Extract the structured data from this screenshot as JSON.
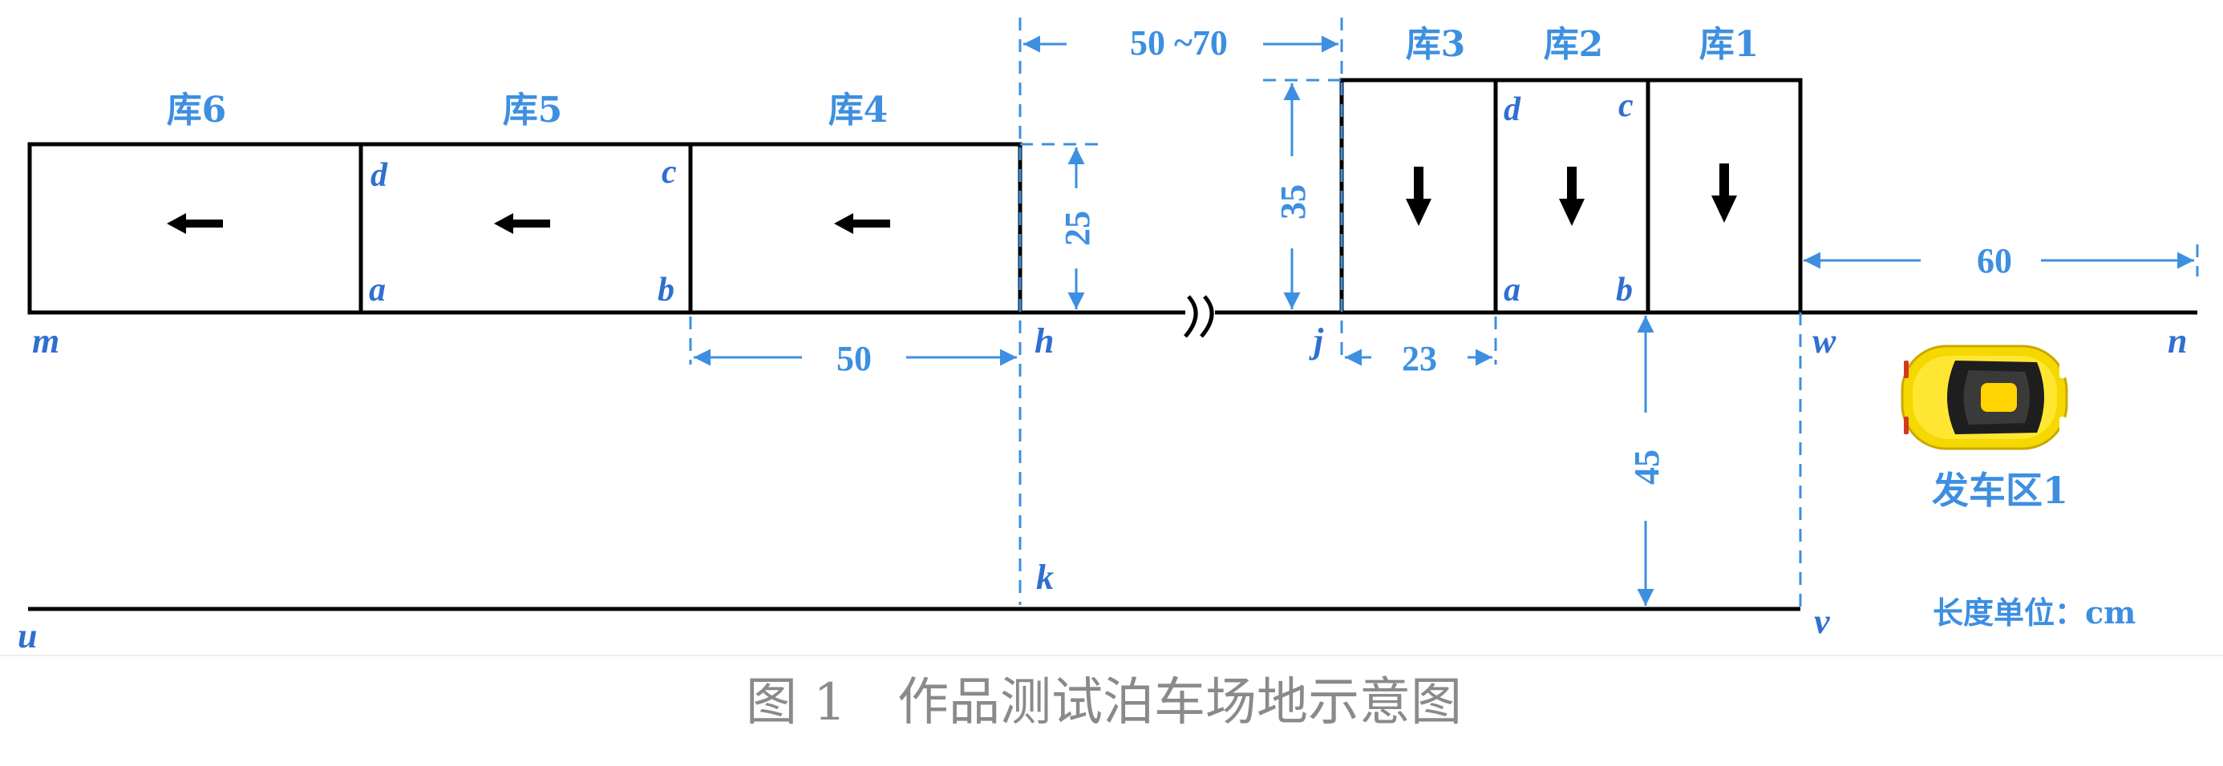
{
  "bays": {
    "bay6": "库6",
    "bay5": "库5",
    "bay4": "库4",
    "bay3": "库3",
    "bay2": "库2",
    "bay1": "库1"
  },
  "points": {
    "m": "m",
    "h": "h",
    "j": "j",
    "w": "w",
    "n": "n",
    "u": "u",
    "k": "k",
    "v": "v",
    "side_a": "a",
    "side_b": "b",
    "side_c": "c",
    "side_d": "d",
    "vert_a": "a",
    "vert_b": "b",
    "vert_c": "c",
    "vert_d": "d"
  },
  "dimensions": {
    "gap": "50 ~70",
    "side_depth": "25",
    "side_width": "50",
    "vert_depth": "35",
    "vert_width": "23",
    "lane_width": "45",
    "start_length": "60"
  },
  "start_area": "发车区1",
  "unit": "长度单位：cm",
  "caption": "图 1　作品测试泊车场地示意图",
  "colors": {
    "annotation": "#3d8fe0",
    "point_label": "#2f6fd0",
    "car_body": "#f5d800"
  }
}
